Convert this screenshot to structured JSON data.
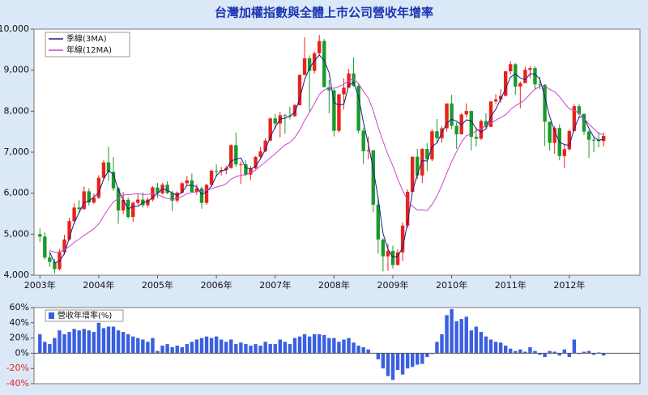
{
  "chart_data": [
    {
      "type": "candlestick",
      "title": "台灣加權指數與全體上市公司營收年增率",
      "up_color": "#e8231b",
      "down_color": "#1a9a2a",
      "open": [
        5000,
        4941,
        4432,
        4321,
        4149,
        4556,
        4872,
        5318,
        5650,
        5611,
        6045,
        5771,
        5890,
        6375,
        6751,
        6522,
        6117,
        5578,
        5839,
        5420,
        5765,
        5845,
        5706,
        5844,
        6140,
        5995,
        6207,
        6005,
        5819,
        6012,
        6242,
        6312,
        6033,
        6119,
        5764,
        6203,
        6548,
        6532,
        6561,
        6614,
        7171,
        6700,
        6704,
        6455,
        6611,
        6883,
        7021,
        7284,
        7823,
        7699,
        7901,
        7884,
        7875,
        8145,
        8883,
        9287,
        8982,
        9411,
        9711,
        8586,
        8506,
        7521,
        8412,
        8572,
        8920,
        8619,
        7524,
        7024,
        7046,
        5719,
        4870,
        4460,
        4591,
        4248,
        4557,
        5210,
        6033,
        6890,
        6432,
        7078,
        6826,
        7509,
        7340,
        7582,
        8188,
        7640,
        7436,
        7920,
        8004,
        7374,
        7329,
        7761,
        7616,
        8238,
        8287,
        8372,
        8972,
        9145,
        8600,
        8683,
        9007,
        9049,
        8653,
        8644,
        7741,
        7225,
        7588,
        6904,
        7072,
        7517,
        8121,
        7933,
        7501,
        7301,
        7296,
        7270
      ],
      "high": [
        5140,
        5050,
        4560,
        4400,
        4640,
        4980,
        5400,
        5750,
        5830,
        6160,
        6120,
        5990,
        6440,
        6800,
        7135,
        6880,
        6150,
        6030,
        5900,
        5800,
        5980,
        6020,
        5900,
        6170,
        6250,
        6250,
        6290,
        6060,
        6040,
        6280,
        6420,
        6480,
        6220,
        6160,
        6230,
        6580,
        6700,
        6640,
        6670,
        7190,
        7475,
        6770,
        6800,
        6660,
        6900,
        7130,
        7340,
        7850,
        7930,
        7990,
        7930,
        8110,
        8180,
        8900,
        9800,
        9360,
        9450,
        9860,
        9760,
        8760,
        8540,
        8420,
        8800,
        9030,
        9310,
        8670,
        7600,
        7380,
        7050,
        5860,
        4900,
        4770,
        4720,
        4630,
        5290,
        6090,
        6890,
        7080,
        7100,
        7220,
        7560,
        7810,
        7640,
        8190,
        8400,
        7730,
        7950,
        8190,
        8010,
        7600,
        7800,
        7950,
        8240,
        8420,
        8540,
        8980,
        9220,
        9170,
        8720,
        9080,
        9100,
        9090,
        8840,
        8660,
        7750,
        7640,
        7680,
        7180,
        7550,
        8170,
        8170,
        7950,
        7540,
        7390,
        7490,
        7480
      ],
      "low": [
        4810,
        4380,
        4200,
        4040,
        4110,
        4500,
        4840,
        5250,
        5500,
        5600,
        5700,
        5740,
        5860,
        6320,
        6300,
        6050,
        5255,
        5500,
        5380,
        5300,
        5700,
        5650,
        5650,
        5800,
        5880,
        5970,
        5970,
        5565,
        5770,
        5990,
        6170,
        6000,
        5960,
        5620,
        5720,
        6180,
        6400,
        6430,
        6460,
        6600,
        6640,
        6230,
        6420,
        6330,
        6580,
        6830,
        7000,
        7260,
        7570,
        7360,
        7450,
        7800,
        7870,
        8140,
        8880,
        7990,
        8920,
        9350,
        8580,
        7950,
        7385,
        7480,
        8040,
        8570,
        8590,
        7460,
        6710,
        6830,
        5530,
        4530,
        4090,
        4110,
        4160,
        4240,
        4350,
        5150,
        6020,
        6340,
        6250,
        6540,
        6780,
        7230,
        7230,
        7500,
        7560,
        7080,
        7430,
        7850,
        7040,
        7140,
        7300,
        7580,
        7610,
        8180,
        8200,
        8370,
        8900,
        8400,
        8070,
        8680,
        8810,
        8520,
        8530,
        7150,
        7040,
        6960,
        6800,
        6610,
        7030,
        7500,
        7850,
        7420,
        6860,
        7000,
        7120,
        7140
      ],
      "close": [
        4941,
        4432,
        4321,
        4149,
        4556,
        4872,
        5318,
        5650,
        5611,
        6045,
        5771,
        5890,
        6375,
        6751,
        6522,
        6117,
        5578,
        5839,
        5420,
        5765,
        5845,
        5706,
        5844,
        6140,
        5995,
        6207,
        6005,
        5819,
        6012,
        6242,
        6312,
        6033,
        6119,
        5764,
        6203,
        6548,
        6532,
        6561,
        6614,
        7171,
        6700,
        6704,
        6455,
        6611,
        6883,
        7021,
        7284,
        7823,
        7699,
        7901,
        7884,
        7875,
        8145,
        8883,
        9287,
        8982,
        9411,
        9711,
        8586,
        8506,
        7521,
        8412,
        8572,
        8920,
        8619,
        7524,
        7024,
        7046,
        5719,
        4870,
        4460,
        4591,
        4248,
        4557,
        5210,
        6033,
        6890,
        6432,
        7078,
        6826,
        7509,
        7340,
        7582,
        8188,
        7640,
        7436,
        7920,
        8004,
        7374,
        7329,
        7761,
        7616,
        8238,
        8287,
        8372,
        8972,
        9145,
        8600,
        8683,
        9007,
        9049,
        8653,
        8644,
        7741,
        7225,
        7588,
        6904,
        7072,
        7517,
        8121,
        7933,
        7501,
        7301,
        7296,
        7270,
        7397
      ],
      "series": [
        {
          "name": "季線(3MA)",
          "color": "#1a1a8c",
          "values": [
            null,
            null,
            4565,
            4301,
            4342,
            4526,
            4915,
            5280,
            5526,
            5769,
            5809,
            5902,
            6012,
            6339,
            6549,
            6463,
            6072,
            5845,
            5612,
            5675,
            5677,
            5772,
            5798,
            5897,
            5993,
            6114,
            6069,
            6010,
            5945,
            6024,
            6189,
            6196,
            6155,
            5972,
            6029,
            6172,
            6428,
            6547,
            6569,
            6782,
            6828,
            6858,
            6620,
            6590,
            6650,
            6838,
            7063,
            7376,
            7602,
            7808,
            7828,
            7887,
            7968,
            8301,
            8772,
            9051,
            9227,
            9368,
            9236,
            8934,
            8204,
            8146,
            8168,
            8635,
            8704,
            8354,
            7722,
            7198,
            6596,
            5878,
            5016,
            4640,
            4433,
            4465,
            4672,
            5267,
            6044,
            6452,
            6800,
            6779,
            7138,
            7225,
            7477,
            7703,
            7803,
            7755,
            7665,
            7787,
            7766,
            7569,
            7488,
            7569,
            7872,
            8047,
            8299,
            8544,
            8830,
            8906,
            8809,
            8763,
            8913,
            8903,
            8782,
            8346,
            7870,
            7518,
            7239,
            7188,
            7164,
            7570,
            7857,
            7852,
            7578,
            7366,
            7289,
            7321
          ]
        },
        {
          "name": "年線(12MA)",
          "color": "#cc44cc",
          "values": [
            null,
            null,
            4600,
            4560,
            4570,
            4620,
            4700,
            4800,
            4880,
            4970,
            5050,
            5130,
            5249,
            5442,
            5626,
            5790,
            5875,
            5956,
            5964,
            5974,
            5993,
            5965,
            5971,
            5992,
            5960,
            5915,
            5872,
            5847,
            5883,
            5917,
            5991,
            6013,
            6036,
            6041,
            6071,
            6105,
            6150,
            6179,
            6230,
            6343,
            6400,
            6438,
            6450,
            6499,
            6562,
            6667,
            6757,
            6863,
            6961,
            7072,
            7178,
            7237,
            7357,
            7539,
            7775,
            7972,
            8183,
            8407,
            8516,
            8573,
            8558,
            8600,
            8658,
            8745,
            8784,
            8671,
            8482,
            8321,
            8013,
            7610,
            7266,
            6940,
            6667,
            6346,
            6066,
            5825,
            5681,
            5590,
            5595,
            5576,
            5725,
            5931,
            6191,
            6491,
            6774,
            7014,
            7240,
            7404,
            7444,
            7519,
            7576,
            7642,
            7702,
            7781,
            7847,
            7912,
            8038,
            8135,
            8198,
            8282,
            8422,
            8532,
            8606,
            8616,
            8532,
            8473,
            8351,
            8193,
            8057,
            8017,
            7955,
            7829,
            7683,
            7570,
            7456,
            7427
          ]
        }
      ],
      "xlim": [
        2002.9,
        2013.2
      ],
      "xticks": [
        {
          "value": 2003,
          "label": "2003年"
        },
        {
          "value": 2004,
          "label": "2004年"
        },
        {
          "value": 2005,
          "label": "2005年"
        },
        {
          "value": 2006,
          "label": "2006年"
        },
        {
          "value": 2007,
          "label": "2007年"
        },
        {
          "value": 2008,
          "label": "2008年"
        },
        {
          "value": 2009,
          "label": "2009年"
        },
        {
          "value": 2010,
          "label": "2010年"
        },
        {
          "value": 2011,
          "label": "2011年"
        },
        {
          "value": 2012,
          "label": "2012年"
        }
      ],
      "ylim": [
        4000,
        10000
      ],
      "yticks": [
        {
          "value": 4000,
          "label": "4,000"
        },
        {
          "value": 5000,
          "label": "5,000"
        },
        {
          "value": 6000,
          "label": "6,000"
        },
        {
          "value": 7000,
          "label": "7,000"
        },
        {
          "value": 8000,
          "label": "8,000"
        },
        {
          "value": 9000,
          "label": "9,000"
        },
        {
          "value": 10000,
          "label": "10,000"
        }
      ]
    },
    {
      "type": "bar",
      "series": [
        {
          "name": "營收年增率(%)",
          "color": "#3a5fe0",
          "values": [
            25,
            15,
            12,
            20,
            30,
            25,
            28,
            32,
            30,
            32,
            30,
            28,
            40,
            33,
            35,
            35,
            30,
            28,
            25,
            22,
            20,
            18,
            15,
            20,
            3,
            10,
            12,
            8,
            10,
            8,
            12,
            15,
            18,
            20,
            22,
            20,
            22,
            18,
            15,
            18,
            12,
            14,
            12,
            10,
            12,
            10,
            15,
            12,
            12,
            18,
            15,
            12,
            20,
            22,
            25,
            22,
            25,
            25,
            24,
            20,
            20,
            15,
            18,
            20,
            14,
            10,
            8,
            5,
            0,
            -8,
            -20,
            -30,
            -35,
            -22,
            -28,
            -20,
            -18,
            -15,
            -14,
            -5,
            -1,
            15,
            25,
            50,
            58,
            42,
            45,
            48,
            30,
            35,
            28,
            22,
            18,
            15,
            14,
            10,
            6,
            3,
            5,
            2,
            8,
            3,
            -2,
            -5,
            3,
            2,
            -3,
            5,
            -5,
            18,
            -1,
            2,
            3,
            -2,
            1,
            -3
          ]
        }
      ],
      "ylim": [
        -40,
        60
      ],
      "yticks": [
        {
          "value": -40,
          "label": "-40%"
        },
        {
          "value": -20,
          "label": "-20%"
        },
        {
          "value": 0,
          "label": "0%"
        },
        {
          "value": 20,
          "label": "20%"
        },
        {
          "value": 40,
          "label": "40%"
        },
        {
          "value": 60,
          "label": "60%"
        }
      ]
    }
  ]
}
